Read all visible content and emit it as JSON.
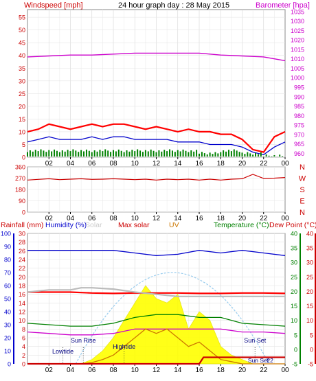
{
  "chart_data": [
    {
      "type": "line",
      "title": "24 hour graph day : 28 May 2015",
      "ylabel_left": "Windspeed [mph]",
      "ylabel_right": "Barometer [hpa]",
      "x_tick_labels": [
        "02",
        "04",
        "06",
        "08",
        "10",
        "12",
        "14",
        "16",
        "18",
        "20",
        "22",
        "00"
      ],
      "left_axis": {
        "ticks": [
          0,
          5,
          10,
          15,
          20,
          25,
          30,
          35,
          40,
          45,
          50,
          55
        ],
        "range": [
          0,
          58
        ]
      },
      "right_axis": {
        "ticks": [
          960,
          965,
          970,
          975,
          980,
          985,
          990,
          995,
          1000,
          1005,
          1010,
          1015,
          1020,
          1025,
          1030,
          1035
        ],
        "range": [
          958,
          1036
        ]
      },
      "grid": true,
      "series": [
        {
          "name": "Windspeed",
          "color": "#ff0000",
          "axis": "left",
          "x": [
            0,
            1,
            2,
            3,
            4,
            5,
            6,
            7,
            8,
            9,
            10,
            11,
            12,
            13,
            14,
            15,
            16,
            17,
            18,
            19,
            20,
            21,
            22,
            23,
            24
          ],
          "y": [
            10,
            11,
            13,
            12,
            11,
            12,
            13,
            12,
            13,
            13,
            12,
            11,
            12,
            11,
            10,
            11,
            10,
            10,
            9,
            9,
            7,
            3,
            2,
            8,
            10
          ]
        },
        {
          "name": "Average wind",
          "color": "#0000cc",
          "axis": "left",
          "x": [
            0,
            1,
            2,
            3,
            4,
            5,
            6,
            7,
            8,
            9,
            10,
            11,
            12,
            13,
            14,
            15,
            16,
            17,
            18,
            19,
            20,
            21,
            22,
            23,
            24
          ],
          "y": [
            6,
            7,
            8,
            7,
            7,
            7,
            8,
            7,
            8,
            8,
            7,
            7,
            7,
            7,
            6,
            6,
            6,
            5,
            5,
            5,
            4,
            2,
            1,
            4,
            6
          ]
        },
        {
          "name": "Wind direction bar",
          "color": "#008000",
          "axis": "left",
          "x": [
            0,
            2,
            4,
            6,
            8,
            10,
            12,
            14,
            16,
            18,
            20,
            22,
            24
          ],
          "y": [
            2,
            2,
            2,
            2,
            2,
            2,
            2,
            2,
            1,
            2,
            1,
            0,
            1
          ]
        },
        {
          "name": "Barometer",
          "color": "#cc00cc",
          "axis": "right",
          "x": [
            0,
            2,
            4,
            6,
            8,
            10,
            12,
            14,
            16,
            18,
            20,
            22,
            24
          ],
          "y": [
            1011,
            1011.5,
            1012,
            1012,
            1012.5,
            1013,
            1013,
            1013,
            1013,
            1012,
            1011.5,
            1011,
            1009
          ]
        }
      ]
    },
    {
      "type": "line",
      "ylabel_right_letters": [
        "N",
        "W",
        "S",
        "E",
        "N"
      ],
      "x_tick_labels": [
        "02",
        "04",
        "06",
        "08",
        "10",
        "12",
        "14",
        "16",
        "18",
        "20",
        "22",
        "00"
      ],
      "left_axis": {
        "ticks": [
          0,
          90,
          180,
          270,
          360
        ],
        "range": [
          0,
          360
        ]
      },
      "grid": true,
      "series": [
        {
          "name": "Wind direction",
          "color": "#cc0000",
          "x": [
            0,
            1,
            2,
            3,
            4,
            5,
            6,
            7,
            8,
            9,
            10,
            11,
            12,
            13,
            14,
            15,
            16,
            17,
            18,
            19,
            20,
            21,
            22,
            23,
            24
          ],
          "y": [
            255,
            260,
            265,
            258,
            262,
            265,
            260,
            262,
            265,
            262,
            258,
            262,
            255,
            262,
            258,
            262,
            255,
            262,
            255,
            262,
            265,
            300,
            268,
            270,
            275
          ]
        }
      ]
    },
    {
      "type": "area",
      "labels": {
        "rainfall": "Rainfall (mm)",
        "humidity": "Humidity (%)",
        "solar": "Solar",
        "max_solar": "Max solar",
        "uv": "UV",
        "temperature": "Temperature (°C)",
        "dew_point": "Dew Point (°C)"
      },
      "annotations": [
        "Lowtide",
        "Sun Rise",
        "Hightide",
        "Sun Set",
        "Sun Set",
        "22"
      ],
      "x_tick_labels": [
        "02",
        "04",
        "06",
        "08",
        "10",
        "12",
        "14",
        "16",
        "18",
        "20",
        "22",
        "00"
      ],
      "axes": {
        "humidity": {
          "ticks": [
            0,
            10,
            20,
            30,
            40,
            50,
            60,
            70,
            80,
            90,
            100
          ],
          "color": "#0000cc"
        },
        "rainfall": {
          "ticks": [
            0,
            2,
            4,
            6,
            8,
            10,
            12,
            14,
            16,
            18,
            20,
            22,
            24,
            26,
            28,
            30
          ],
          "color": "#cc0000"
        },
        "temperature": {
          "ticks": [
            -5,
            0,
            5,
            10,
            15,
            20,
            25,
            30,
            35,
            40
          ],
          "color": "#008000"
        },
        "dew_point": {
          "ticks": [
            -5,
            0,
            5,
            10,
            15,
            20,
            25,
            30,
            35,
            40
          ],
          "color": "#cc0000"
        }
      },
      "grid": true,
      "series": [
        {
          "name": "Humidity",
          "color": "#0000cc",
          "axis": "humidity",
          "x": [
            0,
            2,
            4,
            6,
            8,
            10,
            12,
            14,
            16,
            18,
            20,
            22,
            24
          ],
          "y": [
            87,
            87,
            87,
            87,
            87,
            85,
            83,
            84,
            87,
            85,
            87,
            85,
            83
          ]
        },
        {
          "name": "Max solar",
          "color": "#ff0000",
          "axis": "rainfall",
          "x": [
            0,
            2,
            4,
            6,
            8,
            10,
            12,
            14,
            16,
            18,
            20,
            22,
            24
          ],
          "y": [
            16.5,
            16.5,
            16.5,
            16.3,
            16.2,
            16.3,
            16.3,
            16.3,
            16.2,
            16.2,
            16.3,
            16.3,
            16.2
          ]
        },
        {
          "name": "Max solar ideal",
          "color": "#bbbbbb",
          "axis": "rainfall",
          "x": [
            0,
            2,
            4,
            5,
            6,
            8,
            10,
            12,
            14,
            16,
            18,
            20,
            22,
            24
          ],
          "y": [
            16.5,
            17,
            17,
            17.5,
            17.5,
            17.2,
            16.5,
            16,
            15.5,
            15.5,
            15.5,
            15.5,
            15.5,
            15.5
          ]
        },
        {
          "name": "Temperature",
          "color": "#008000",
          "axis": "temperature",
          "x": [
            0,
            2,
            4,
            6,
            8,
            10,
            12,
            14,
            16,
            18,
            20,
            22,
            24
          ],
          "y": [
            9,
            8.5,
            8,
            8,
            9,
            11,
            12,
            12,
            11,
            11,
            9,
            8.5,
            8
          ]
        },
        {
          "name": "Dew Point",
          "color": "#cc00cc",
          "axis": "dew_point",
          "x": [
            0,
            2,
            4,
            6,
            8,
            10,
            12,
            14,
            16,
            18,
            20,
            22,
            24
          ],
          "y": [
            6,
            5.5,
            5,
            5,
            5.5,
            7,
            7,
            7,
            7,
            7,
            6,
            6,
            5.5
          ]
        },
        {
          "name": "Solar",
          "color": "#ffff00",
          "axis": "rainfall",
          "x": [
            0,
            4,
            5,
            6,
            7,
            8,
            9,
            10,
            11,
            12,
            13,
            14,
            15,
            16,
            17,
            18,
            19,
            20,
            21,
            24
          ],
          "y": [
            0,
            0,
            0,
            1,
            3,
            6,
            10,
            14,
            18,
            15,
            14,
            16,
            8,
            12,
            10,
            4,
            2,
            1,
            0,
            0
          ]
        },
        {
          "name": "UV",
          "color": "#cc7700",
          "axis": "rainfall",
          "x": [
            0,
            5,
            6,
            7,
            8,
            9,
            10,
            11,
            12,
            13,
            14,
            15,
            16,
            17,
            18,
            19,
            20,
            24
          ],
          "y": [
            0,
            0,
            0.3,
            1,
            2,
            4,
            6,
            8,
            7,
            8,
            6,
            4,
            5,
            3,
            1,
            0.5,
            0,
            0
          ]
        },
        {
          "name": "Rainfall",
          "color": "#cc0000",
          "axis": "rainfall",
          "x": [
            0,
            16,
            16.4,
            18,
            20,
            22,
            24
          ],
          "y": [
            0,
            0,
            1.5,
            1.5,
            1.5,
            1.5,
            1.5
          ]
        }
      ]
    }
  ]
}
